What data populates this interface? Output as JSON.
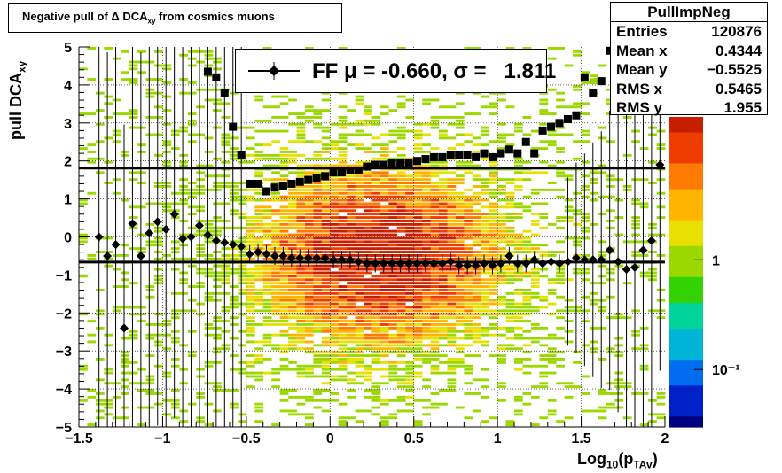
{
  "title": {
    "prefix": "Negative pull of Δ DCA",
    "subscript": "xy",
    "suffix": " from cosmics muons"
  },
  "stats": {
    "name": "PullImpNeg",
    "rows": [
      {
        "label": "Entries",
        "value": "120876"
      },
      {
        "label": "Mean x",
        "value": "0.4344"
      },
      {
        "label": "Mean y",
        "value": "−0.5525"
      },
      {
        "label": "RMS x",
        "value": "0.5465"
      },
      {
        "label": "RMS y",
        "value": "1.955"
      }
    ]
  },
  "legend": {
    "text": "FF μ = -0.660, σ =   1.811"
  },
  "axes": {
    "ylabel_main": "pull DCA",
    "ylabel_sub": "xy",
    "xlabel_main": "Log",
    "xlabel_sub": "10",
    "xlabel_paren": "(p",
    "xlabel_subsub": "TAv",
    "xlabel_close": ")"
  },
  "colors": {
    "axis": "#000000",
    "marker": "#000000",
    "heat_high": "#c81e00",
    "heat_mid": "#ff9a00",
    "heat_low": "#8fd400"
  },
  "chart_data": {
    "type": "heatmap",
    "xlim": [
      -1.5,
      2.0
    ],
    "ylim": [
      -5,
      5
    ],
    "xticks": [
      -1.5,
      -1,
      -0.5,
      0,
      0.5,
      1,
      1.5,
      2
    ],
    "xtick_labels": [
      "−1.5",
      "−1",
      "−0.5",
      "0",
      "0.5",
      "1",
      "1.5",
      "2"
    ],
    "yticks": [
      -5,
      -4,
      -3,
      -2,
      -1,
      0,
      1,
      2,
      3,
      4,
      5
    ],
    "ytick_labels": [
      "−5",
      "−4",
      "−3",
      "−2",
      "−1",
      "0",
      "1",
      "2",
      "3",
      "4",
      "5"
    ],
    "zscale": "log",
    "zticks": [
      0.1,
      1
    ],
    "ztick_labels": [
      "10⁻¹",
      "1"
    ],
    "grid": true,
    "fit_mean": -0.66,
    "fit_sigma": 1.811,
    "mean_series": {
      "x": [
        -1.38,
        -1.33,
        -1.28,
        -1.23,
        -1.18,
        -1.13,
        -1.08,
        -1.03,
        -0.98,
        -0.93,
        -0.88,
        -0.83,
        -0.78,
        -0.73,
        -0.68,
        -0.63,
        -0.58,
        -0.53,
        -0.48,
        -0.43,
        -0.38,
        -0.33,
        -0.28,
        -0.23,
        -0.18,
        -0.13,
        -0.08,
        -0.03,
        0.02,
        0.07,
        0.12,
        0.17,
        0.22,
        0.27,
        0.32,
        0.37,
        0.42,
        0.47,
        0.52,
        0.57,
        0.62,
        0.67,
        0.72,
        0.77,
        0.82,
        0.87,
        0.92,
        0.97,
        1.02,
        1.07,
        1.12,
        1.17,
        1.22,
        1.27,
        1.32,
        1.37,
        1.42,
        1.47,
        1.52,
        1.57,
        1.62,
        1.67,
        1.72,
        1.77,
        1.82,
        1.87,
        1.92,
        1.97
      ],
      "y": [
        0.0,
        -0.5,
        -0.2,
        -2.4,
        0.35,
        -0.5,
        0.1,
        0.4,
        0.2,
        0.6,
        -0.05,
        0.0,
        0.3,
        0.05,
        -0.1,
        -0.15,
        -0.2,
        -0.25,
        -0.45,
        -0.4,
        -0.45,
        -0.5,
        -0.5,
        -0.55,
        -0.55,
        -0.55,
        -0.55,
        -0.55,
        -0.6,
        -0.6,
        -0.6,
        -0.65,
        -0.7,
        -0.7,
        -0.7,
        -0.7,
        -0.7,
        -0.7,
        -0.7,
        -0.7,
        -0.7,
        -0.7,
        -0.65,
        -0.75,
        -0.75,
        -0.75,
        -0.7,
        -0.75,
        -0.7,
        -0.5,
        -0.7,
        -0.7,
        -0.6,
        -0.7,
        -0.65,
        -0.7,
        -0.65,
        -0.55,
        -0.6,
        -0.6,
        -0.6,
        -0.35,
        -0.65,
        -0.85,
        -0.8,
        -0.35,
        -0.1,
        1.9
      ]
    },
    "rms_series": {
      "x": [
        -0.73,
        -0.68,
        -0.63,
        -0.58,
        -0.53,
        -0.48,
        -0.43,
        -0.38,
        -0.33,
        -0.28,
        -0.23,
        -0.18,
        -0.13,
        -0.08,
        -0.03,
        0.02,
        0.07,
        0.12,
        0.17,
        0.22,
        0.27,
        0.32,
        0.37,
        0.42,
        0.47,
        0.52,
        0.57,
        0.62,
        0.67,
        0.72,
        0.77,
        0.82,
        0.87,
        0.92,
        0.97,
        1.02,
        1.07,
        1.12,
        1.17,
        1.22,
        1.27,
        1.32,
        1.37,
        1.42,
        1.47,
        1.52,
        1.57,
        1.62,
        1.67,
        1.72
      ],
      "y": [
        4.35,
        4.2,
        3.8,
        2.9,
        2.15,
        1.4,
        1.4,
        1.2,
        1.3,
        1.35,
        1.4,
        1.45,
        1.5,
        1.55,
        1.6,
        1.7,
        1.7,
        1.75,
        1.75,
        1.85,
        1.9,
        1.9,
        1.95,
        1.95,
        1.95,
        2.0,
        2.05,
        2.1,
        2.1,
        2.15,
        2.15,
        2.15,
        2.1,
        2.2,
        2.1,
        2.2,
        2.3,
        2.2,
        2.5,
        2.2,
        2.8,
        2.9,
        3.0,
        3.1,
        3.2,
        4.2,
        3.8,
        4.1,
        4.9,
        3.5
      ]
    }
  }
}
